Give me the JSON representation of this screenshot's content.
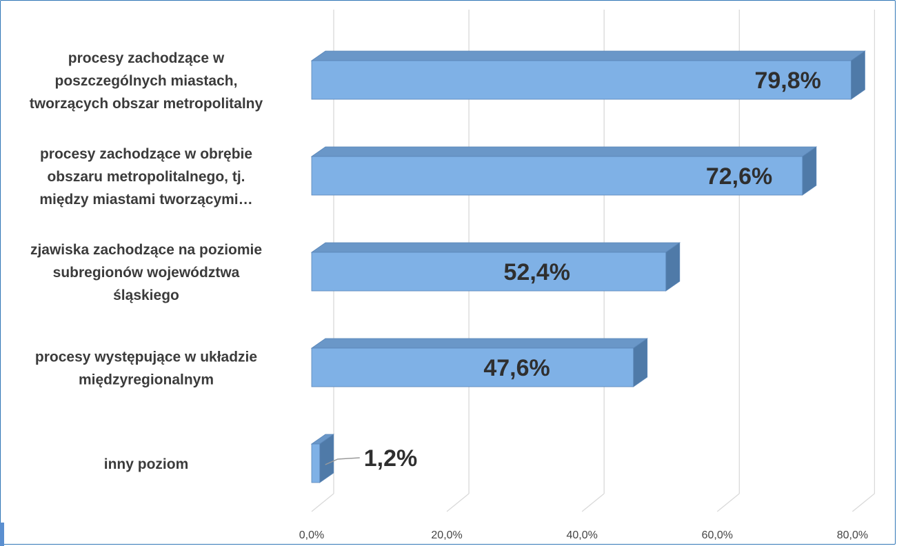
{
  "chart_data": {
    "type": "bar",
    "orientation": "horizontal",
    "categories": [
      "procesy zachodzące w poszczególnych miastach, tworzących obszar metropolitalny",
      "procesy zachodzące w obrębie obszaru metropolitalnego, tj. między miastami tworzącymi…",
      "zjawiska zachodzące na poziomie subregionów województwa śląskiego",
      "procesy występujące w układzie międzyregionalnym",
      "inny poziom"
    ],
    "category_lines": [
      [
        "procesy zachodzące w",
        "poszczególnych miastach,",
        "tworzących obszar metropolitalny"
      ],
      [
        "procesy zachodzące w obrębie",
        "obszaru metropolitalnego, tj.",
        "między miastami tworzącymi…"
      ],
      [
        "zjawiska zachodzące na poziomie",
        "subregionów województwa",
        "śląskiego"
      ],
      [
        "procesy występujące w układzie",
        "międzyregionalnym"
      ],
      [
        "inny poziom"
      ]
    ],
    "values": [
      79.8,
      72.6,
      52.4,
      47.6,
      1.2
    ],
    "value_labels": [
      "79,8%",
      "72,6%",
      "52,4%",
      "47,6%",
      "1,2%"
    ],
    "x_ticks": [
      "0,0%",
      "20,0%",
      "40,0%",
      "60,0%",
      "80,0%"
    ],
    "x_tick_values": [
      0,
      20,
      40,
      60,
      80
    ],
    "xlim": [
      0,
      80
    ],
    "grid": true,
    "legend": "none",
    "style": "3d",
    "colors": {
      "bar_front": "#7fb1e6",
      "bar_top": "#6a97c8",
      "bar_side": "#4f7aa8",
      "bar_edge": "#5a86b8",
      "grid": "#d9d9d9",
      "frame": "#2e75b6"
    }
  }
}
